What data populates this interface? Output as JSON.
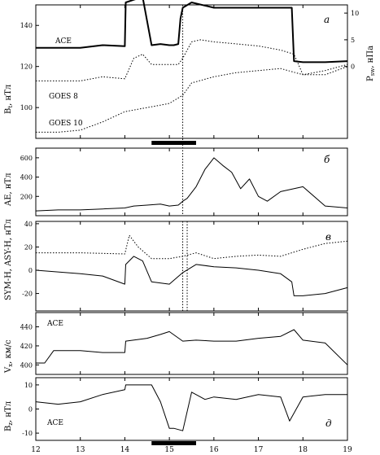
{
  "chart_data": {
    "type": "line",
    "x_axis": {
      "ticks": [
        "12",
        "13",
        "14",
        "15",
        "16",
        "17",
        "18",
        "19"
      ],
      "xlim": [
        12,
        19
      ]
    },
    "interval_bar": [
      14.6,
      15.6
    ],
    "vline_x": [
      15.3
    ],
    "vline_x_c": [
      15.3,
      15.4
    ],
    "panels": [
      {
        "id": "a",
        "label": "а",
        "ylabel": "B",
        "ylabel_sub": "t",
        "ylabel_unit": ", нТл",
        "ylabel_right": "P",
        "ylabel_right_sub": "sw",
        "ylabel_right_unit": ", нПа",
        "ylim": [
          85,
          150
        ],
        "ticks_left": [
          "100",
          "120",
          "140"
        ],
        "ticks_left_values": [
          100,
          120,
          140
        ],
        "ticks_right": [
          "0",
          "5",
          "10"
        ],
        "ticks_right_values": [
          120,
          133,
          146
        ],
        "series": [
          {
            "name": "ACE",
            "style": "solid-bold",
            "x": [
              12.0,
              13.0,
              13.5,
              14.0,
              14.02,
              14.2,
              14.4,
              14.6,
              14.8,
              15.0,
              15.1,
              15.2,
              15.25,
              15.3,
              15.5,
              16.0,
              16.5,
              17.0,
              17.5,
              17.75,
              17.8,
              18.0,
              18.5,
              19.0
            ],
            "y": [
              3.5,
              3.5,
              4.0,
              3.8,
              12.0,
              12.5,
              13.0,
              4.0,
              4.2,
              4.0,
              4.0,
              4.2,
              9.0,
              11.0,
              12.0,
              11.0,
              11.0,
              11.0,
              11.0,
              11.0,
              1.0,
              0.8,
              0.8,
              1.0
            ]
          },
          {
            "name": "GOES 8",
            "style": "dotted",
            "x": [
              12.0,
              13.0,
              13.5,
              14.0,
              14.2,
              14.4,
              14.6,
              14.8,
              15.0,
              15.2,
              15.3,
              15.5,
              15.7,
              16.0,
              16.5,
              17.0,
              17.5,
              17.8,
              18.0,
              18.5,
              19.0
            ],
            "y": [
              113,
              113,
              115,
              114,
              124,
              126,
              121,
              121,
              121,
              121,
              124,
              132,
              133,
              132,
              131,
              130,
              128,
              126,
              116,
              116,
              120
            ]
          },
          {
            "name": "GOES 10",
            "style": "dotted",
            "x": [
              12.0,
              12.5,
              13.0,
              13.5,
              14.0,
              14.5,
              15.0,
              15.3,
              15.5,
              16.0,
              16.5,
              17.0,
              17.5,
              18.0,
              18.5,
              19.0
            ],
            "y": [
              88,
              88,
              89,
              93,
              98,
              100,
              102,
              106,
              112,
              115,
              117,
              118,
              119,
              116,
              118,
              121
            ]
          }
        ]
      },
      {
        "id": "b",
        "label": "б",
        "ylabel": "AE",
        "ylabel_unit": ", нТл",
        "ylim": [
          0,
          700
        ],
        "ticks_left": [
          "200",
          "400",
          "600"
        ],
        "ticks_left_values": [
          200,
          400,
          600
        ],
        "series": [
          {
            "name": "",
            "style": "solid",
            "x": [
              12.0,
              12.5,
              13.0,
              13.5,
              14.0,
              14.2,
              14.5,
              14.8,
              15.0,
              15.2,
              15.3,
              15.4,
              15.6,
              15.8,
              16.0,
              16.2,
              16.4,
              16.6,
              16.8,
              17.0,
              17.2,
              17.5,
              18.0,
              18.5,
              19.0
            ],
            "y": [
              50,
              60,
              60,
              70,
              80,
              100,
              110,
              120,
              100,
              110,
              150,
              180,
              300,
              480,
              600,
              520,
              450,
              280,
              380,
              200,
              150,
              250,
              300,
              100,
              80
            ]
          }
        ]
      },
      {
        "id": "c",
        "label": "в",
        "ylabel": "SYM-H, ASY-H",
        "ylabel_unit": ", нТл",
        "ylim": [
          -35,
          42
        ],
        "ticks_left": [
          "-20",
          "0",
          "20",
          "40"
        ],
        "ticks_left_values": [
          -20,
          0,
          20,
          40
        ],
        "series": [
          {
            "name": "SYM-H",
            "style": "solid",
            "x": [
              12.0,
              13.0,
              13.5,
              14.0,
              14.02,
              14.2,
              14.4,
              14.6,
              15.0,
              15.3,
              15.6,
              16.0,
              16.5,
              17.0,
              17.5,
              17.75,
              17.8,
              18.0,
              18.5,
              19.0
            ],
            "y": [
              0,
              -3,
              -5,
              -12,
              5,
              12,
              8,
              -10,
              -12,
              -2,
              5,
              3,
              2,
              0,
              -3,
              -10,
              -22,
              -22,
              -20,
              -15
            ]
          },
          {
            "name": "ASY-H",
            "style": "dotted",
            "x": [
              12.0,
              13.0,
              14.0,
              14.1,
              14.3,
              14.6,
              15.0,
              15.3,
              15.6,
              16.0,
              16.5,
              17.0,
              17.5,
              18.0,
              18.5,
              19.0
            ],
            "y": [
              15,
              15,
              14,
              30,
              20,
              10,
              10,
              12,
              15,
              10,
              12,
              13,
              12,
              18,
              23,
              25
            ]
          }
        ]
      },
      {
        "id": "d",
        "label": "",
        "ylabel": "V",
        "ylabel_sub": "x",
        "ylabel_unit": ", км/с",
        "ylim": [
          390,
          455
        ],
        "ticks_left": [
          "400",
          "420",
          "440"
        ],
        "ticks_left_values": [
          400,
          420,
          440
        ],
        "series": [
          {
            "name": "ACE",
            "style": "solid",
            "x": [
              12.0,
              12.2,
              12.4,
              13.0,
              13.5,
              14.0,
              14.02,
              14.5,
              14.8,
              15.0,
              15.3,
              15.6,
              16.0,
              16.5,
              17.0,
              17.5,
              17.8,
              18.0,
              18.5,
              19.0
            ],
            "y": [
              402,
              402,
              415,
              415,
              413,
              413,
              425,
              428,
              432,
              435,
              425,
              426,
              425,
              425,
              428,
              430,
              437,
              426,
              423,
              400
            ]
          }
        ]
      },
      {
        "id": "e",
        "label": "д",
        "ylabel": "B",
        "ylabel_sub": "z",
        "ylabel_unit": ", нТл",
        "ylim": [
          -13,
          13
        ],
        "ticks_left": [
          "-10",
          "0",
          "10"
        ],
        "ticks_left_values": [
          -10,
          0,
          10
        ],
        "series": [
          {
            "name": "ACE",
            "style": "solid",
            "x": [
              12.0,
              12.5,
              13.0,
              13.5,
              14.0,
              14.02,
              14.4,
              14.6,
              14.8,
              15.0,
              15.1,
              15.3,
              15.5,
              15.8,
              16.0,
              16.5,
              17.0,
              17.5,
              17.7,
              18.0,
              18.5,
              19.0
            ],
            "y": [
              3,
              2,
              3,
              6,
              8,
              10,
              10,
              10,
              3,
              -8,
              -8,
              -9,
              7,
              4,
              5,
              4,
              6,
              5,
              -5,
              5,
              6,
              6
            ]
          }
        ]
      }
    ]
  }
}
